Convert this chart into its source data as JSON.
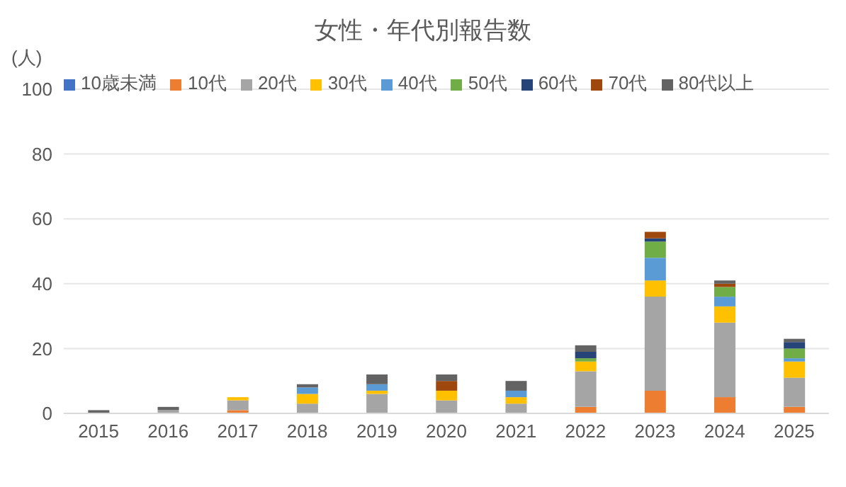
{
  "chart_data": {
    "type": "bar",
    "title": "女性・年代別報告数",
    "ylabel": "(人)",
    "stacked": true,
    "grid": "y",
    "legend": "top",
    "categories": [
      "2015",
      "2016",
      "2017",
      "2018",
      "2019",
      "2020",
      "2021",
      "2022",
      "2023",
      "2024",
      "2025"
    ],
    "ylim": [
      0,
      100
    ],
    "yticks": [
      0,
      20,
      40,
      60,
      80,
      100
    ],
    "series": [
      {
        "name": "10歳未満",
        "color": "#4472c4",
        "values": [
          0,
          0,
          0,
          0,
          0,
          0,
          0,
          0,
          0,
          0,
          0
        ]
      },
      {
        "name": "10代",
        "color": "#ed7d31",
        "values": [
          0,
          0,
          1,
          0,
          0,
          0,
          0,
          2,
          7,
          5,
          2
        ]
      },
      {
        "name": "20代",
        "color": "#a5a5a5",
        "values": [
          0,
          1,
          3,
          3,
          6,
          4,
          3,
          11,
          29,
          23,
          9
        ]
      },
      {
        "name": "30代",
        "color": "#ffc000",
        "values": [
          0,
          0,
          1,
          3,
          1,
          3,
          2,
          3,
          5,
          5,
          5
        ]
      },
      {
        "name": "40代",
        "color": "#5b9bd5",
        "values": [
          0,
          0,
          0,
          2,
          2,
          0,
          2,
          0,
          7,
          3,
          1
        ]
      },
      {
        "name": "50代",
        "color": "#70ad47",
        "values": [
          0,
          0,
          0,
          0,
          0,
          0,
          0,
          1,
          5,
          3,
          3
        ]
      },
      {
        "name": "60代",
        "color": "#264478",
        "values": [
          0,
          0,
          0,
          0,
          0,
          0,
          0,
          2,
          1,
          0,
          2
        ]
      },
      {
        "name": "70代",
        "color": "#9e480e",
        "values": [
          0,
          0,
          0,
          0,
          0,
          3,
          0,
          0,
          2,
          1,
          0
        ]
      },
      {
        "name": "80代以上",
        "color": "#636363",
        "values": [
          1,
          1,
          0,
          1,
          3,
          2,
          3,
          2,
          0,
          1,
          1
        ]
      }
    ]
  }
}
